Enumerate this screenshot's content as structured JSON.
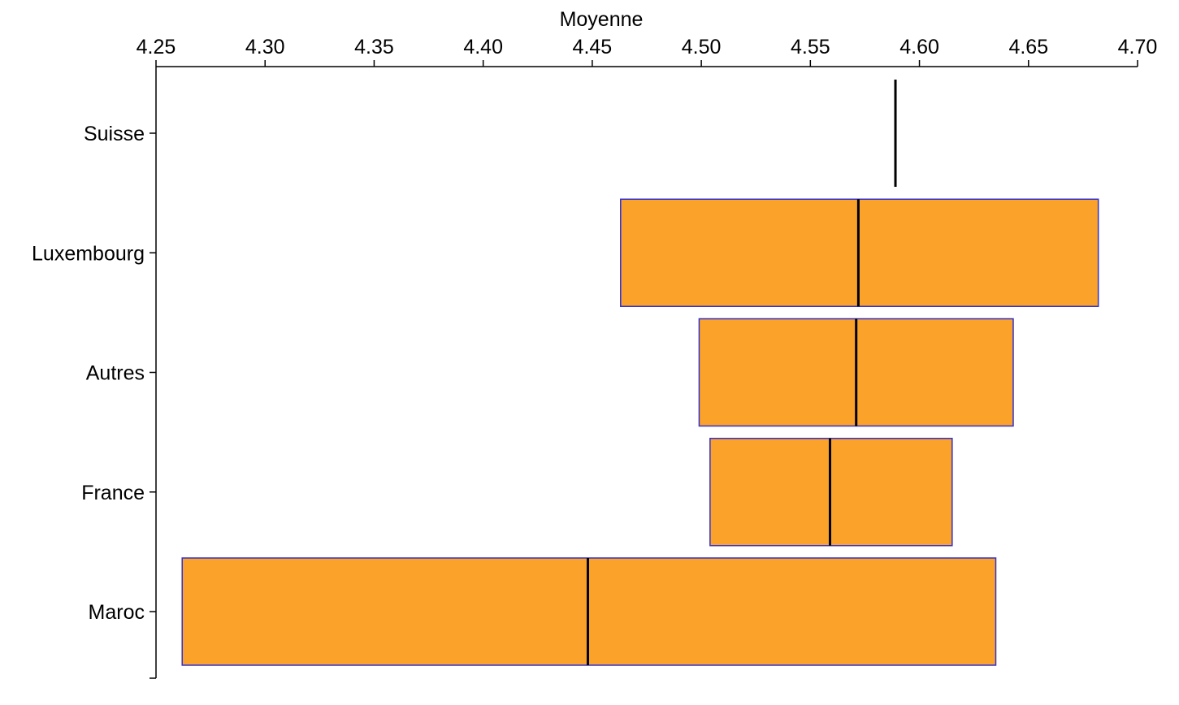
{
  "chart_data": {
    "type": "box",
    "orientation": "horizontal",
    "xlabel": "Moyenne",
    "xlim": [
      4.25,
      4.7
    ],
    "xticks": [
      "4.25",
      "4.30",
      "4.35",
      "4.40",
      "4.45",
      "4.50",
      "4.55",
      "4.60",
      "4.65",
      "4.70"
    ],
    "categories": [
      "Suisse",
      "Luxembourg",
      "Autres",
      "France",
      "Maroc"
    ],
    "boxes": [
      {
        "category": "Suisse",
        "low": 4.589,
        "median": 4.589,
        "high": 4.589
      },
      {
        "category": "Luxembourg",
        "low": 4.463,
        "median": 4.572,
        "high": 4.682
      },
      {
        "category": "Autres",
        "low": 4.499,
        "median": 4.571,
        "high": 4.643
      },
      {
        "category": "France",
        "low": 4.504,
        "median": 4.559,
        "high": 4.615
      },
      {
        "category": "Maroc",
        "low": 4.262,
        "median": 4.448,
        "high": 4.635
      }
    ],
    "box_fill": "#FBA22B",
    "box_stroke": "#3030D0",
    "median_color": "#000000"
  }
}
